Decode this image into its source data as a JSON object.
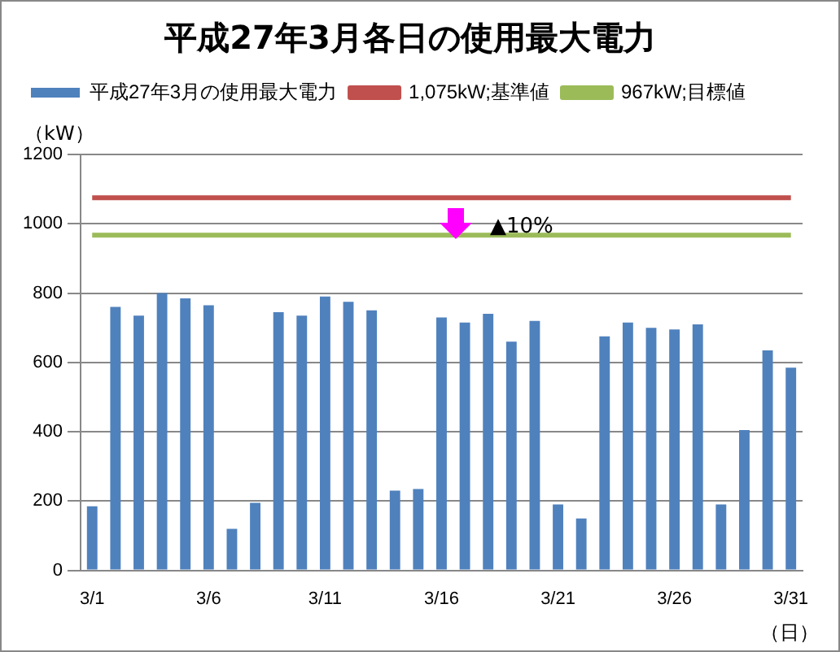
{
  "chart_data": {
    "type": "bar",
    "title": "平成27年3月各日の使用最大電力",
    "xlabel": "（日）",
    "ylabel": "（kW）",
    "categories": [
      "3/1",
      null,
      null,
      null,
      null,
      "3/6",
      null,
      null,
      null,
      null,
      "3/11",
      null,
      null,
      null,
      null,
      "3/16",
      null,
      null,
      null,
      null,
      "3/21",
      null,
      null,
      null,
      null,
      "3/26",
      null,
      null,
      null,
      null,
      "3/31"
    ],
    "series": [
      {
        "name": "平成27年3月の使用最大電力",
        "color": "#4f81bd",
        "values": [
          185,
          760,
          735,
          800,
          785,
          765,
          120,
          195,
          745,
          735,
          790,
          775,
          750,
          230,
          235,
          730,
          715,
          740,
          660,
          720,
          190,
          150,
          675,
          715,
          700,
          695,
          710,
          190,
          405,
          635,
          585
        ]
      },
      {
        "name": "1,075kW;基準値",
        "type": "line",
        "color": "#c0504d",
        "values": [
          1075,
          1075,
          1075,
          1075,
          1075,
          1075,
          1075,
          1075,
          1075,
          1075,
          1075,
          1075,
          1075,
          1075,
          1075,
          1075,
          1075,
          1075,
          1075,
          1075,
          1075,
          1075,
          1075,
          1075,
          1075,
          1075,
          1075,
          1075,
          1075,
          1075,
          1075
        ]
      },
      {
        "name": "967kW;目標値",
        "type": "line",
        "color": "#9bbb59",
        "values": [
          967,
          967,
          967,
          967,
          967,
          967,
          967,
          967,
          967,
          967,
          967,
          967,
          967,
          967,
          967,
          967,
          967,
          967,
          967,
          967,
          967,
          967,
          967,
          967,
          967,
          967,
          967,
          967,
          967,
          967,
          967
        ]
      }
    ],
    "ylim": [
      0,
      1200
    ],
    "yticks": [
      0,
      200,
      400,
      600,
      800,
      1000,
      1200
    ],
    "grid": "y",
    "legend": "top",
    "marker": "none",
    "annotations": [
      "▲10%"
    ]
  }
}
